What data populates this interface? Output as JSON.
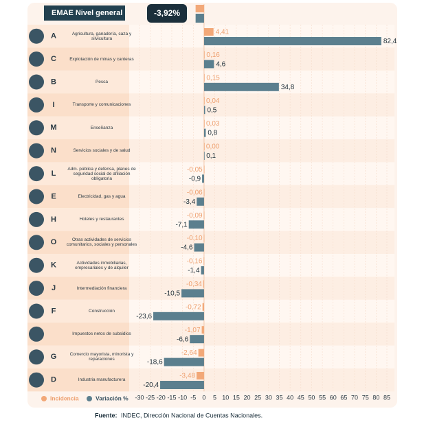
{
  "chart_data": {
    "type": "bar",
    "orientation": "horizontal",
    "header": {
      "title": "EMAE Nivel general",
      "incidence": -3.92,
      "variation": -3.92,
      "value_label": "-3,92%"
    },
    "codes": [
      "A",
      "C",
      "B",
      "I",
      "M",
      "N",
      "L",
      "E",
      "H",
      "O",
      "K",
      "J",
      "F",
      null,
      "G",
      "D"
    ],
    "categories": [
      "Agricultura, ganadería, caza y silvicultura",
      "Explotación de minas y canteras",
      "Pesca",
      "Transporte y comunicaciones",
      "Enseñanza",
      "Servicios sociales y de salud",
      "Adm. pública y defensa, planes de seguridad social de afiliación obligatoria",
      "Electricidad, gas y agua",
      "Hoteles y restaurantes",
      "Otras actividades de servicios comunitarios, sociales y personales",
      "Actividades inmobiliarias, empresariales y de alquiler",
      "Intermediación financiera",
      "Construcción",
      "Impuestos netos de subsidios",
      "Comercio mayorista, minorista y reparaciones",
      "Industria manufacturera"
    ],
    "series": [
      {
        "name": "Incidencia",
        "color": "#f2a878",
        "values": [
          4.41,
          0.16,
          0.15,
          0.04,
          0.03,
          0.0,
          -0.05,
          -0.06,
          -0.09,
          -0.1,
          -0.16,
          -0.34,
          -0.72,
          -1.07,
          -2.64,
          -3.48
        ],
        "value_labels": [
          "4,41",
          "0,16",
          "0,15",
          "0,04",
          "0,03",
          "0,00",
          "-0,05",
          "-0,06",
          "-0,09",
          "-0,10",
          "-0,16",
          "-0,34",
          "-0,72",
          "-1,07",
          "-2,64",
          "-3,48"
        ]
      },
      {
        "name": "Variación %",
        "color": "#5b7f8e",
        "values": [
          82.4,
          4.6,
          34.8,
          0.5,
          0.8,
          0.1,
          -0.9,
          -3.4,
          -7.1,
          -4.6,
          -1.4,
          -10.5,
          -23.6,
          -6.6,
          -18.6,
          -20.4
        ],
        "value_labels": [
          "82,4",
          "4,6",
          "34,8",
          "0,5",
          "0,8",
          "0,1",
          "-0,9",
          "-3,4",
          "-7,1",
          "-4,6",
          "-1,4",
          "-10,5",
          "-23,6",
          "-6,6",
          "-18,6",
          "-20,4"
        ]
      }
    ],
    "xlim": [
      -30,
      88
    ],
    "xticks": [
      -30,
      -25,
      -20,
      -15,
      -10,
      -5,
      0,
      5,
      10,
      15,
      20,
      25,
      30,
      35,
      40,
      45,
      50,
      55,
      60,
      65,
      70,
      75,
      80,
      85
    ],
    "source_label": "Fuente:",
    "source": "INDEC, Dirección Nacional de Cuentas Nacionales."
  }
}
